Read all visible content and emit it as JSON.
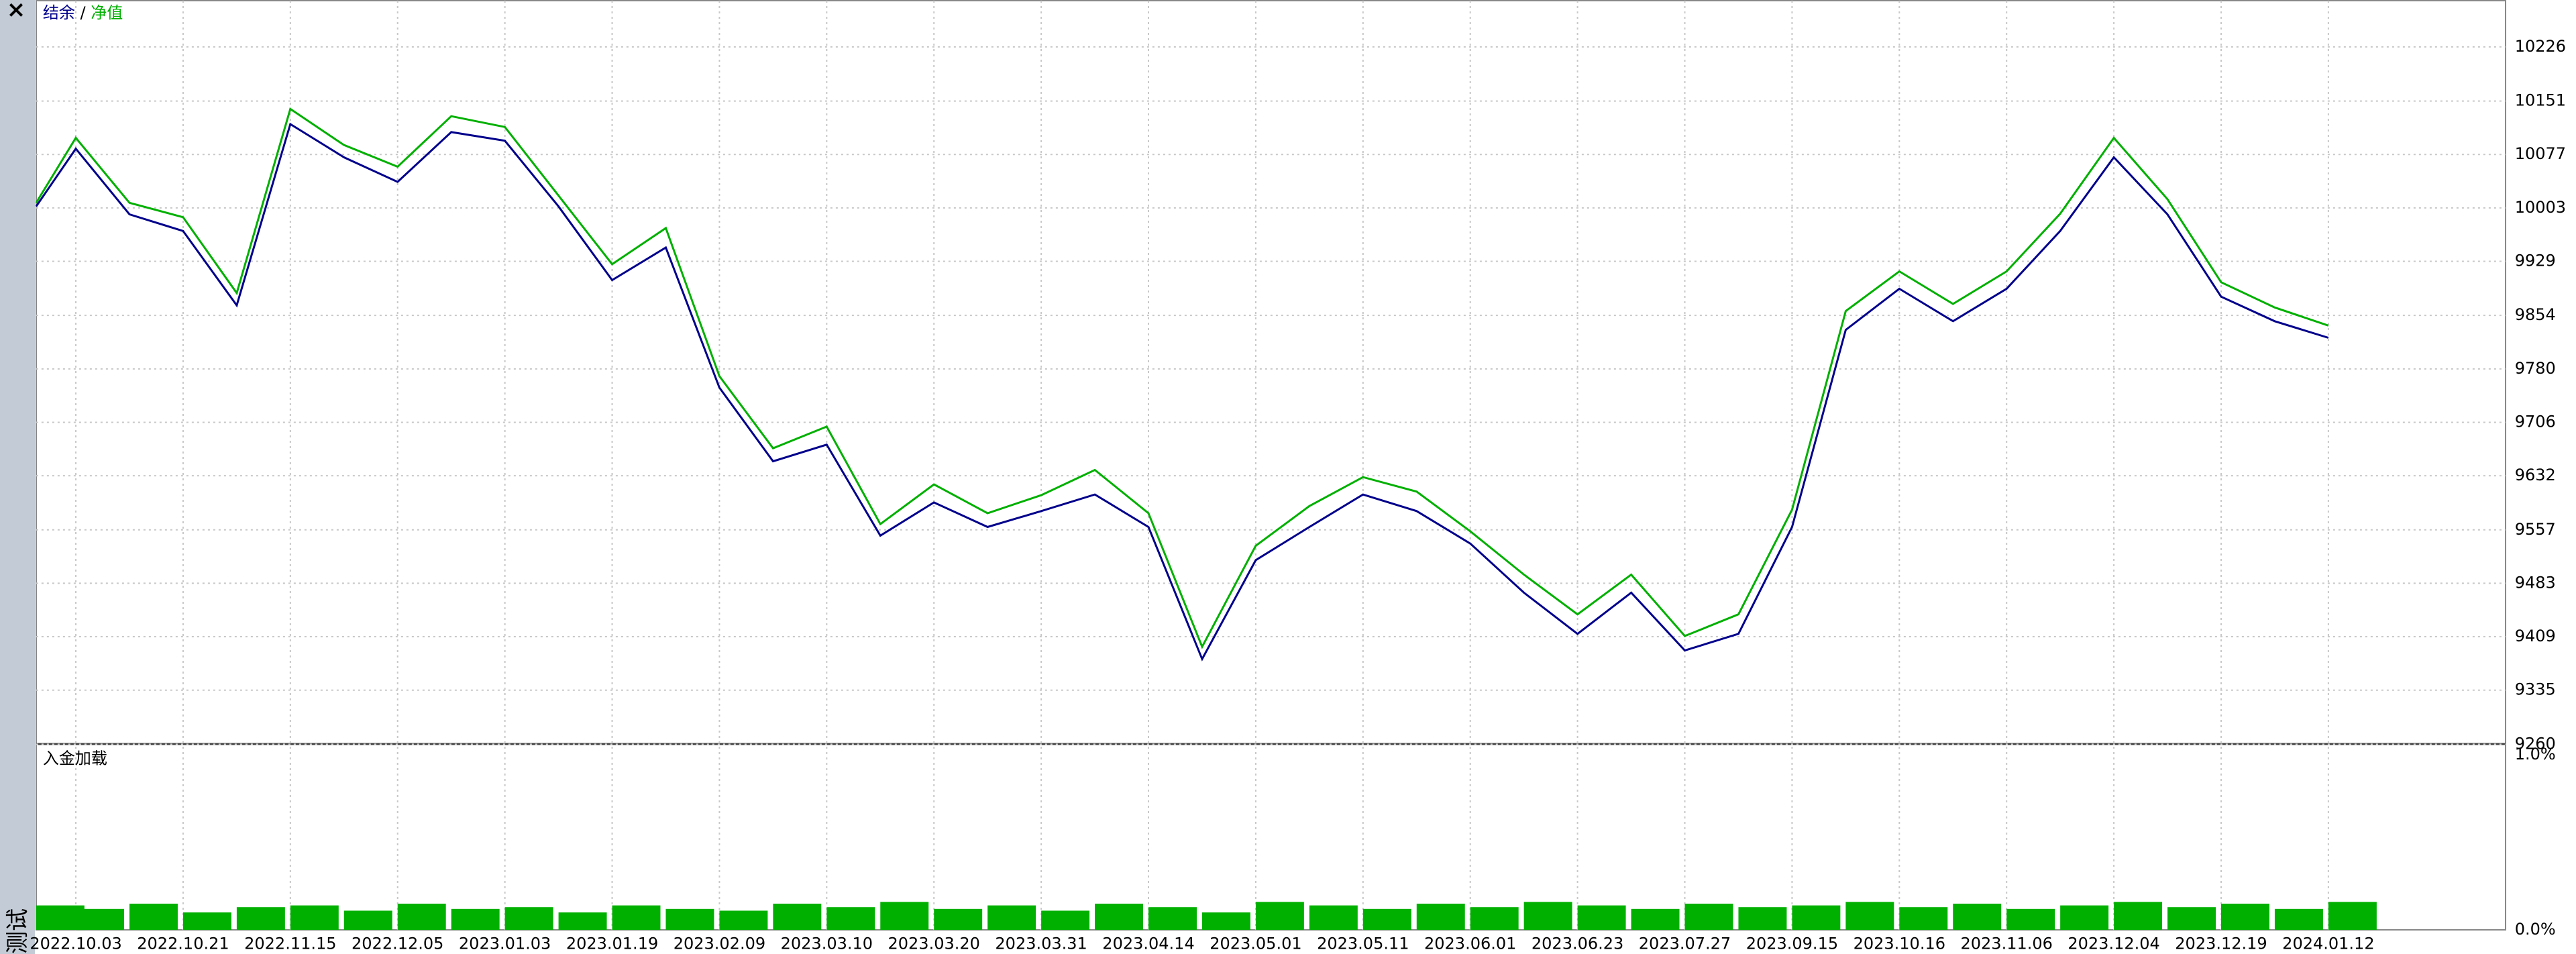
{
  "chart_data": [
    {
      "type": "line",
      "legend": [
        "结余",
        " / ",
        "净值"
      ],
      "xlim": [
        -0.37,
        22.65
      ],
      "ylim": [
        9260,
        10290
      ],
      "yticks": [
        9260,
        9335,
        9409,
        9483,
        9557,
        9632,
        9706,
        9780,
        9854,
        9929,
        10003,
        10077,
        10151,
        10226
      ],
      "xticks": [
        {
          "value": 0,
          "label": "2022.10.03"
        },
        {
          "value": 1,
          "label": "2022.10.21"
        },
        {
          "value": 2,
          "label": "2022.11.15"
        },
        {
          "value": 3,
          "label": "2022.12.05"
        },
        {
          "value": 4,
          "label": "2023.01.03"
        },
        {
          "value": 5,
          "label": "2023.01.19"
        },
        {
          "value": 6,
          "label": "2023.02.09"
        },
        {
          "value": 7,
          "label": "2023.03.10"
        },
        {
          "value": 8,
          "label": "2023.03.20"
        },
        {
          "value": 9,
          "label": "2023.03.31"
        },
        {
          "value": 10,
          "label": "2023.04.14"
        },
        {
          "value": 11,
          "label": "2023.05.01"
        },
        {
          "value": 12,
          "label": "2023.05.11"
        },
        {
          "value": 13,
          "label": "2023.06.01"
        },
        {
          "value": 14,
          "label": "2023.06.23"
        },
        {
          "value": 15,
          "label": "2023.07.27"
        },
        {
          "value": 16,
          "label": "2023.09.15"
        },
        {
          "value": 17,
          "label": "2023.10.16"
        },
        {
          "value": 18,
          "label": "2023.11.06"
        },
        {
          "value": 19,
          "label": "2023.12.04"
        },
        {
          "value": 20,
          "label": "2023.12.19"
        },
        {
          "value": 21,
          "label": "2024.01.12"
        }
      ],
      "grid": true,
      "x": [
        -0.37,
        0,
        0.5,
        1,
        1.5,
        2,
        2.5,
        3,
        3.5,
        4,
        4.5,
        5,
        5.5,
        6,
        6.5,
        7,
        7.5,
        8,
        8.5,
        9,
        9.5,
        10,
        10.5,
        11,
        11.5,
        12,
        12.5,
        13,
        13.5,
        14,
        14.5,
        15,
        15.5,
        16,
        16.5,
        17,
        17.5,
        18,
        18.5,
        19,
        19.5,
        20,
        20.5,
        21
      ],
      "series": [
        {
          "name": "结余",
          "color": "#00008b",
          "values": [
            10005,
            10085,
            9994,
            9971,
            9868,
            10119,
            10073,
            10039,
            10108,
            10096,
            10005,
            9903,
            9948,
            9754,
            9652,
            9675,
            9549,
            9595,
            9561,
            9583,
            9606,
            9561,
            9378,
            9515,
            9561,
            9606,
            9583,
            9538,
            9470,
            9413,
            9470,
            9390,
            9413,
            9561,
            9834,
            9891,
            9846,
            9891,
            9971,
            10073,
            9994,
            9880,
            9846,
            9823
          ]
        },
        {
          "name": "净值",
          "color": "#00b000",
          "values": [
            10010,
            10100,
            10010,
            9990,
            9885,
            10140,
            10090,
            10060,
            10130,
            10115,
            10020,
            9925,
            9975,
            9770,
            9670,
            9700,
            9565,
            9620,
            9580,
            9605,
            9640,
            9580,
            9395,
            9535,
            9590,
            9630,
            9610,
            9555,
            9495,
            9440,
            9495,
            9410,
            9440,
            9585,
            9860,
            9915,
            9870,
            9915,
            9995,
            10100,
            10015,
            9900,
            9865,
            9840
          ]
        }
      ]
    },
    {
      "type": "bar",
      "title": "入金加载",
      "color": "#00b000",
      "xlim": [
        -0.37,
        22.65
      ],
      "ylim": [
        0,
        1.06
      ],
      "yticks": [
        {
          "value": 0,
          "label": "0.0%"
        },
        {
          "value": 1,
          "label": "1.0%"
        }
      ],
      "x": [
        -0.37,
        0,
        0.5,
        1,
        1.5,
        2,
        2.5,
        3,
        3.5,
        4,
        4.5,
        5,
        5.5,
        6,
        6.5,
        7,
        7.5,
        8,
        8.5,
        9,
        9.5,
        10,
        10.5,
        11,
        11.5,
        12,
        12.5,
        13,
        13.5,
        14,
        14.5,
        15,
        15.5,
        16,
        16.5,
        17,
        17.5,
        18,
        18.5,
        19,
        19.5,
        20,
        20.5,
        21
      ],
      "values": [
        0.14,
        0.12,
        0.15,
        0.1,
        0.13,
        0.14,
        0.11,
        0.15,
        0.12,
        0.13,
        0.1,
        0.14,
        0.12,
        0.11,
        0.15,
        0.13,
        0.16,
        0.12,
        0.14,
        0.11,
        0.15,
        0.13,
        0.1,
        0.16,
        0.14,
        0.12,
        0.15,
        0.13,
        0.16,
        0.14,
        0.12,
        0.15,
        0.13,
        0.14,
        0.16,
        0.13,
        0.15,
        0.12,
        0.14,
        0.16,
        0.13,
        0.15,
        0.12,
        0.16
      ]
    }
  ],
  "sidebar": {
    "close": "×",
    "label": "测试"
  }
}
